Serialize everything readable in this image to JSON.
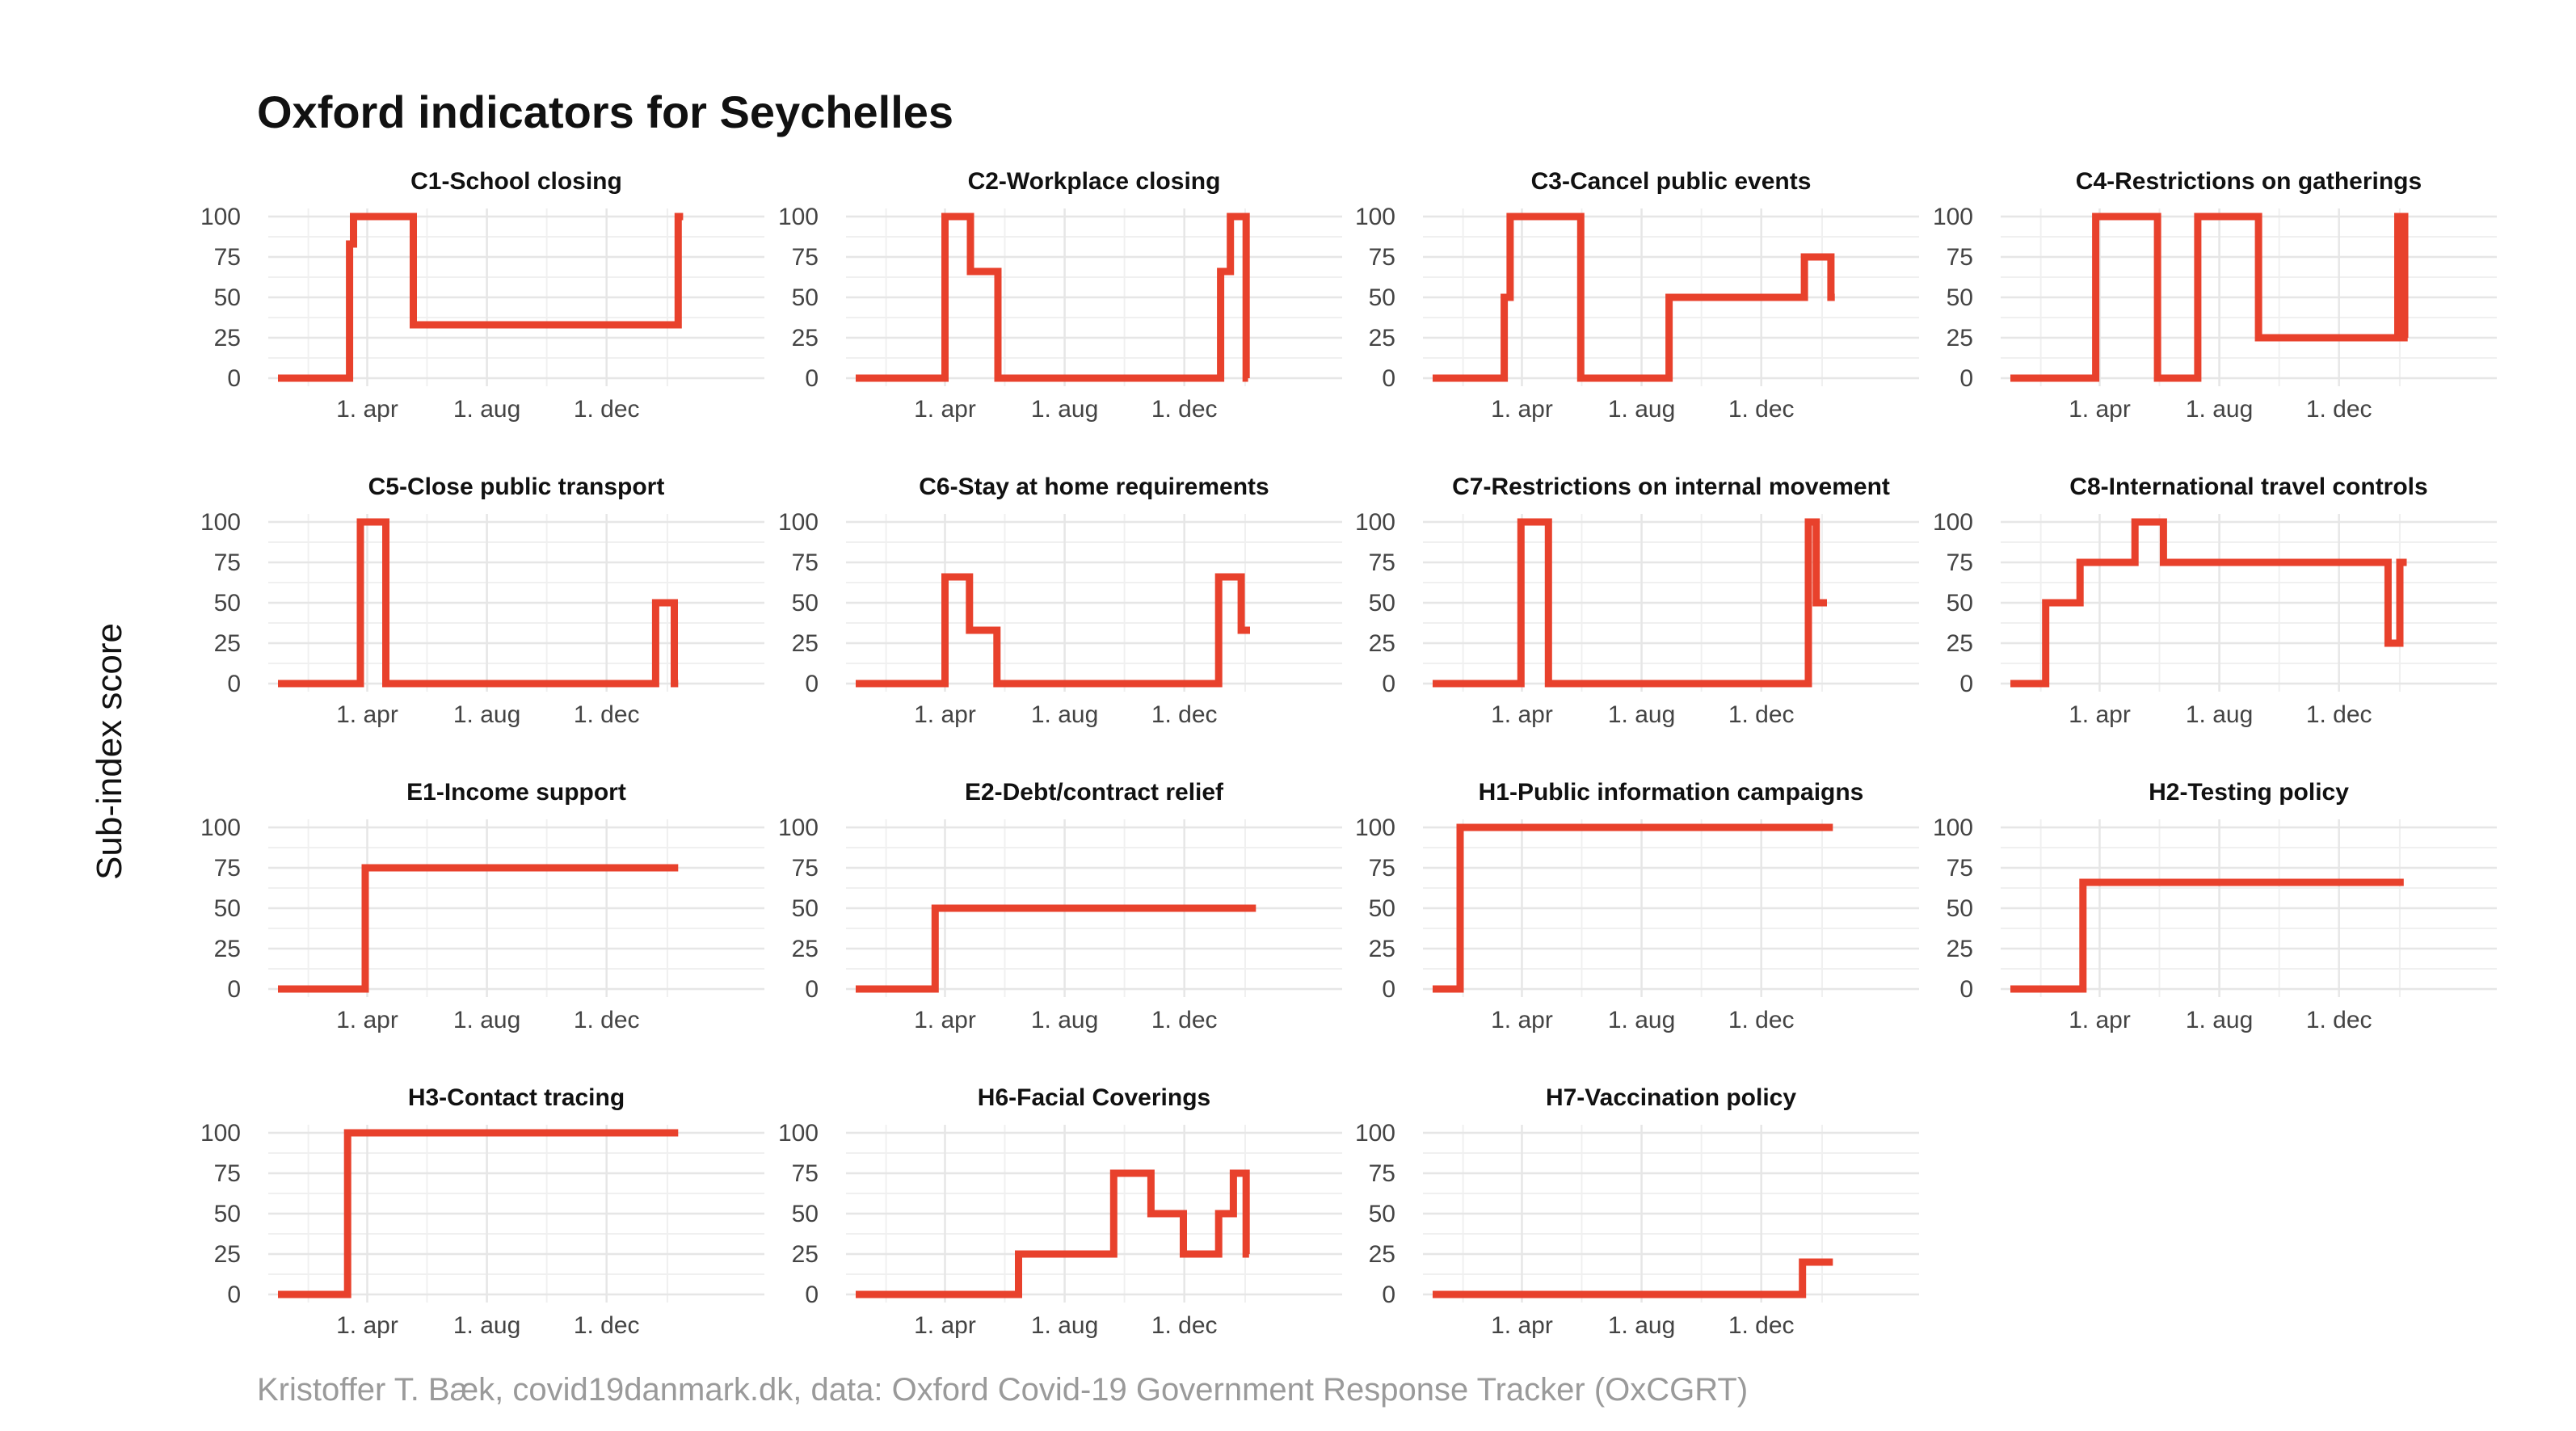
{
  "title": "Oxford indicators for Seychelles",
  "caption": "Kristoffer T. Bæk, covid19danmark.dk, data: Oxford Covid-19 Government Response Tracker (OxCGRT)",
  "ylabel": "Sub-index score",
  "colors": {
    "line": "#e8412c",
    "grid": "#e6e6e6",
    "text": "#111111",
    "caption": "#9a9a9a"
  },
  "chart_data": {
    "type": "line",
    "layout": "small-multiples",
    "x_axis": {
      "type": "date",
      "range": [
        "2020-01-01",
        "2021-05-01"
      ],
      "ticks": [
        "2020-04-01",
        "2020-08-01",
        "2020-12-01"
      ],
      "tick_labels": [
        "1. apr",
        "1. aug",
        "1. dec"
      ]
    },
    "y_axis": {
      "range": [
        0,
        100
      ],
      "ticks": [
        0,
        25,
        50,
        75,
        100
      ]
    },
    "grid": true,
    "panels": [
      {
        "name": "C1-School closing",
        "steps": [
          [
            "2020-01-01",
            0
          ],
          [
            "2020-03-14",
            83
          ],
          [
            "2020-03-18",
            100
          ],
          [
            "2020-05-15",
            100
          ],
          [
            "2020-05-18",
            33
          ],
          [
            "2021-02-10",
            33
          ],
          [
            "2021-02-12",
            100
          ],
          [
            "2021-02-17",
            100
          ]
        ]
      },
      {
        "name": "C2-Workplace closing",
        "steps": [
          [
            "2020-01-01",
            0
          ],
          [
            "2020-04-01",
            100
          ],
          [
            "2020-04-27",
            66
          ],
          [
            "2020-05-25",
            0
          ],
          [
            "2021-01-05",
            0
          ],
          [
            "2021-01-07",
            66
          ],
          [
            "2021-01-17",
            100
          ],
          [
            "2021-02-02",
            0
          ],
          [
            "2021-02-04",
            0
          ]
        ]
      },
      {
        "name": "C3-Cancel public events",
        "steps": [
          [
            "2020-01-01",
            0
          ],
          [
            "2020-03-14",
            50
          ],
          [
            "2020-03-20",
            100
          ],
          [
            "2020-05-31",
            0
          ],
          [
            "2020-08-29",
            50
          ],
          [
            "2021-01-14",
            75
          ],
          [
            "2021-02-10",
            50
          ],
          [
            "2021-02-14",
            50
          ]
        ]
      },
      {
        "name": "C4-Restrictions on gatherings",
        "steps": [
          [
            "2020-01-01",
            0
          ],
          [
            "2020-03-28",
            100
          ],
          [
            "2020-05-30",
            0
          ],
          [
            "2020-07-10",
            100
          ],
          [
            "2020-09-10",
            25
          ],
          [
            "2021-01-30",
            100
          ],
          [
            "2021-02-02",
            25
          ],
          [
            "2021-02-04",
            100
          ],
          [
            "2021-02-06",
            25
          ],
          [
            "2021-02-09",
            25
          ]
        ]
      },
      {
        "name": "C5-Close public transport",
        "steps": [
          [
            "2020-01-01",
            0
          ],
          [
            "2020-03-25",
            100
          ],
          [
            "2020-04-20",
            0
          ],
          [
            "2021-01-20",
            50
          ],
          [
            "2021-02-08",
            0
          ],
          [
            "2021-02-12",
            0
          ]
        ]
      },
      {
        "name": "C6-Stay at home requirements",
        "steps": [
          [
            "2020-01-01",
            0
          ],
          [
            "2020-04-01",
            66
          ],
          [
            "2020-04-26",
            33
          ],
          [
            "2020-05-24",
            0
          ],
          [
            "2021-01-05",
            66
          ],
          [
            "2021-01-28",
            33
          ],
          [
            "2021-02-06",
            33
          ]
        ]
      },
      {
        "name": "C7-Restrictions on internal movement",
        "steps": [
          [
            "2020-01-01",
            0
          ],
          [
            "2020-03-31",
            100
          ],
          [
            "2020-04-28",
            0
          ],
          [
            "2021-01-18",
            100
          ],
          [
            "2021-01-26",
            50
          ],
          [
            "2021-02-06",
            50
          ]
        ]
      },
      {
        "name": "C8-International travel controls",
        "steps": [
          [
            "2020-01-01",
            0
          ],
          [
            "2020-02-06",
            50
          ],
          [
            "2020-03-12",
            75
          ],
          [
            "2020-05-07",
            100
          ],
          [
            "2020-06-05",
            75
          ],
          [
            "2021-01-20",
            25
          ],
          [
            "2021-02-01",
            75
          ],
          [
            "2021-02-08",
            75
          ]
        ]
      },
      {
        "name": "E1-Income support",
        "steps": [
          [
            "2020-01-01",
            0
          ],
          [
            "2020-03-30",
            75
          ],
          [
            "2021-02-12",
            75
          ]
        ]
      },
      {
        "name": "E2-Debt/contract relief",
        "steps": [
          [
            "2020-01-01",
            0
          ],
          [
            "2020-03-22",
            50
          ],
          [
            "2021-02-12",
            50
          ]
        ]
      },
      {
        "name": "H1-Public information campaigns",
        "steps": [
          [
            "2020-01-01",
            0
          ],
          [
            "2020-01-29",
            100
          ],
          [
            "2021-02-12",
            100
          ]
        ]
      },
      {
        "name": "H2-Testing policy",
        "steps": [
          [
            "2020-01-01",
            0
          ],
          [
            "2020-03-15",
            66
          ],
          [
            "2021-02-05",
            66
          ]
        ]
      },
      {
        "name": "H3-Contact tracing",
        "steps": [
          [
            "2020-01-01",
            0
          ],
          [
            "2020-03-12",
            100
          ],
          [
            "2021-02-12",
            100
          ]
        ]
      },
      {
        "name": "H6-Facial Coverings",
        "steps": [
          [
            "2020-01-01",
            0
          ],
          [
            "2020-06-15",
            25
          ],
          [
            "2020-09-20",
            75
          ],
          [
            "2020-10-28",
            50
          ],
          [
            "2020-11-30",
            25
          ],
          [
            "2021-01-05",
            50
          ],
          [
            "2021-01-20",
            75
          ],
          [
            "2021-02-02",
            25
          ],
          [
            "2021-02-05",
            25
          ]
        ]
      },
      {
        "name": "H7-Vaccination policy",
        "steps": [
          [
            "2020-01-01",
            0
          ],
          [
            "2021-01-12",
            20
          ],
          [
            "2021-02-12",
            20
          ]
        ]
      }
    ]
  }
}
